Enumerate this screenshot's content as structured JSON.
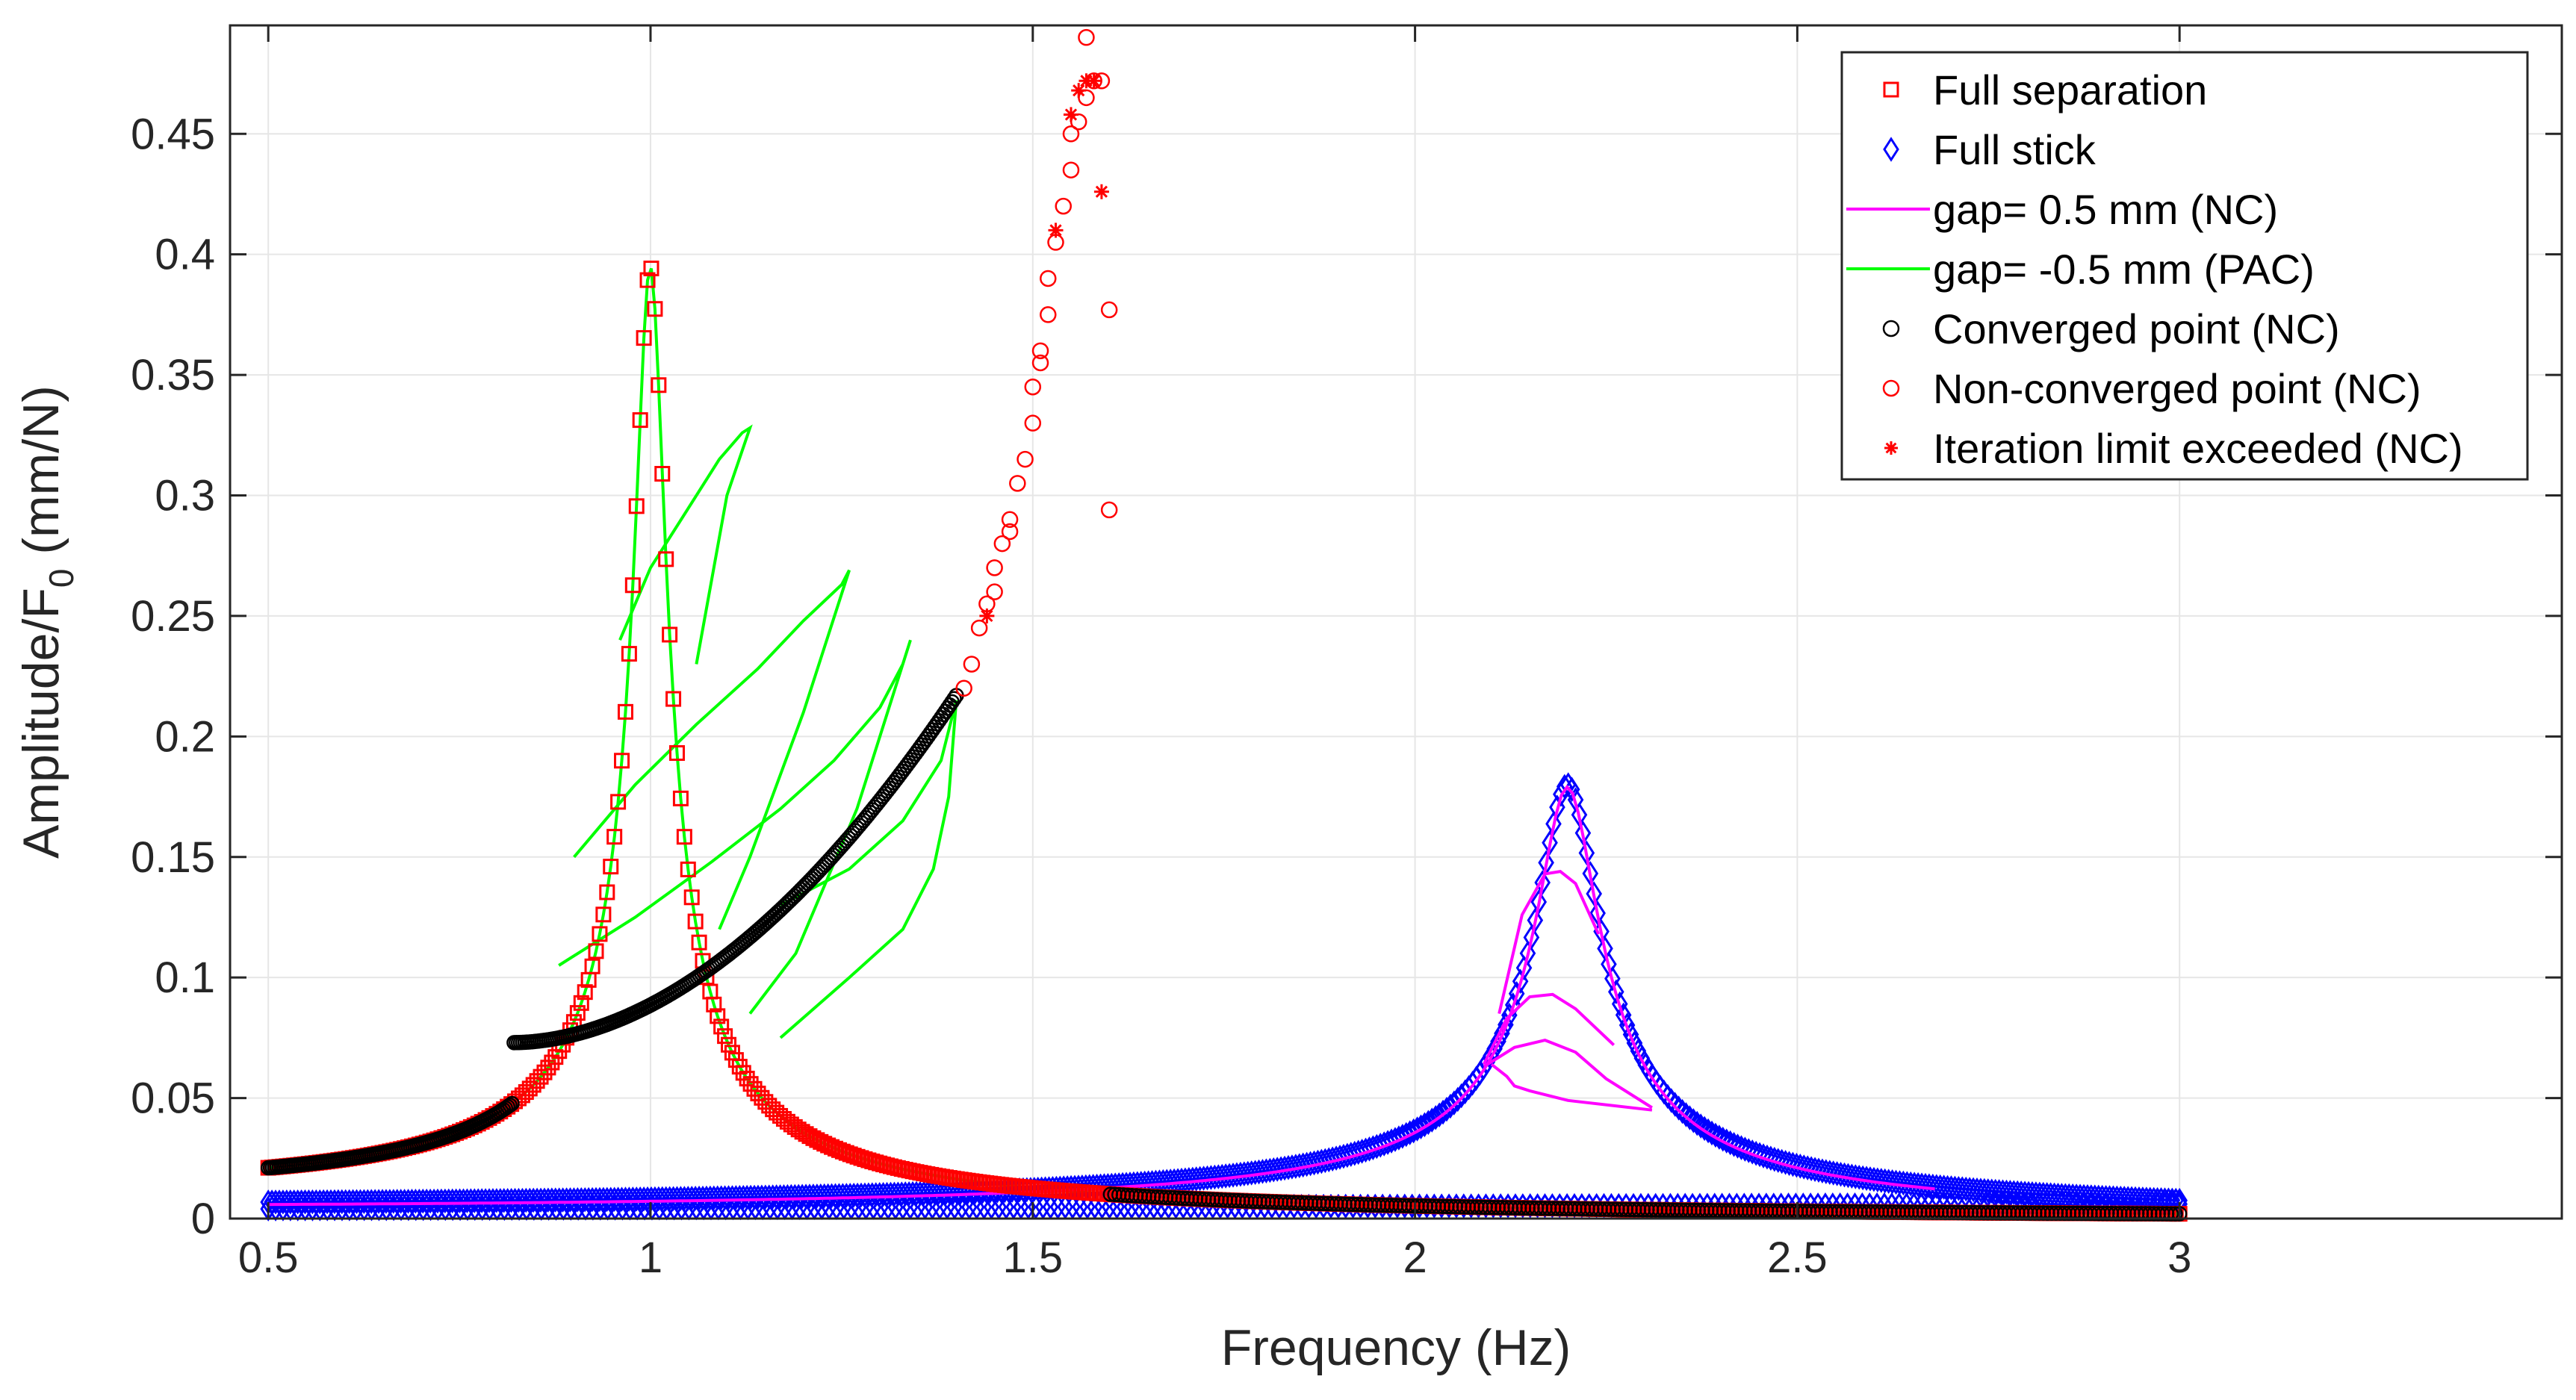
{
  "chart_data": {
    "type": "line",
    "title": "",
    "xlabel": "Frequency (Hz)",
    "ylabel": {
      "main": "Amplitude/F",
      "sub": "0",
      "unit": " (mm/N)"
    },
    "xlim": [
      0.45,
      3.5
    ],
    "ylim": [
      0,
      0.495
    ],
    "xticks": [
      0.5,
      1,
      1.5,
      2,
      2.5,
      3
    ],
    "xtick_labels": [
      "0.5",
      "1",
      "1.5",
      "2",
      "2.5",
      "3"
    ],
    "yticks": [
      0,
      0.05,
      0.1,
      0.15,
      0.2,
      0.25,
      0.3,
      0.35,
      0.4,
      0.45
    ],
    "ytick_labels": [
      "0",
      "0.05",
      "0.1",
      "0.15",
      "0.2",
      "0.25",
      "0.3",
      "0.35",
      "0.4",
      "0.45"
    ],
    "grid": true,
    "legend_position": "top-right",
    "colors": {
      "full_separation": "#ff0000",
      "full_stick": "#0000ff",
      "gap_pos": "#ff00ff",
      "gap_neg": "#00ff00",
      "converged": "#000000",
      "nonconverged": "#ff0000",
      "iteration": "#ff0000",
      "axis": "#262626",
      "grid": "#e6e6e6"
    },
    "series": [
      {
        "key": "full_separation",
        "name": "Full separation",
        "marker": "square",
        "model": {
          "peak_freq": 1.0,
          "peak_amp": 0.395,
          "damping": 0.02,
          "f_start": 0.5,
          "f_end": 3.0
        }
      },
      {
        "key": "full_stick",
        "name": "Full stick",
        "marker": "diamond",
        "model": {
          "peak_freq": 2.2,
          "peak_amp": 0.18,
          "damping": 0.018,
          "f_start": 0.5,
          "f_end": 3.0
        }
      },
      {
        "key": "gap_pos",
        "name": "gap= 0.5 mm (NC)",
        "marker": "line",
        "peak_curves": [
          {
            "x": [
              2.09,
              2.13,
              2.17,
              2.21,
              2.25,
              2.31
            ],
            "y": [
              0.063,
              0.071,
              0.074,
              0.069,
              0.058,
              0.046
            ]
          },
          {
            "x": [
              2.09,
              2.12,
              2.15,
              2.18,
              2.21,
              2.26
            ],
            "y": [
              0.064,
              0.083,
              0.092,
              0.093,
              0.087,
              0.072
            ]
          },
          {
            "x": [
              2.11,
              2.14,
              2.17,
              2.19,
              2.21,
              2.24
            ],
            "y": [
              0.085,
              0.126,
              0.143,
              0.144,
              0.139,
              0.118
            ]
          },
          {
            "x": [
              2.1,
              2.12,
              2.13,
              2.15,
              2.2,
              2.31
            ],
            "y": [
              0.064,
              0.059,
              0.055,
              0.053,
              0.049,
              0.045
            ]
          }
        ]
      },
      {
        "key": "gap_neg",
        "name": "gap= -0.5 mm (PAC)",
        "marker": "line",
        "loops": [
          {
            "x": [
              0.96,
              1.0,
              1.05,
              1.09,
              1.12,
              1.13,
              1.1,
              1.06
            ],
            "y": [
              0.24,
              0.27,
              0.295,
              0.315,
              0.326,
              0.328,
              0.3,
              0.23
            ]
          },
          {
            "x": [
              0.9,
              0.98,
              1.06,
              1.14,
              1.2,
              1.25,
              1.26,
              1.2,
              1.13,
              1.09
            ],
            "y": [
              0.15,
              0.18,
              0.205,
              0.228,
              0.248,
              0.263,
              0.269,
              0.21,
              0.15,
              0.12
            ]
          },
          {
            "x": [
              0.88,
              0.98,
              1.08,
              1.17,
              1.24,
              1.3,
              1.33,
              1.34,
              1.27,
              1.19,
              1.13
            ],
            "y": [
              0.105,
              0.125,
              0.148,
              0.17,
              0.19,
              0.212,
              0.23,
              0.24,
              0.17,
              0.11,
              0.085
            ]
          },
          {
            "x": [
              1.17,
              1.26,
              1.33,
              1.37,
              1.39,
              1.4,
              1.38,
              1.33,
              1.26,
              1.17
            ],
            "y": [
              0.075,
              0.1,
              0.12,
              0.145,
              0.175,
              0.215,
              0.19,
              0.165,
              0.145,
              0.13
            ]
          }
        ]
      },
      {
        "key": "converged",
        "name": "Converged point (NC)",
        "marker": "circle",
        "model": {
          "f_start": 0.5,
          "f_end": 3.0,
          "knee_freq": 0.82,
          "knee_amp": 0.073,
          "jump_freq": 1.4,
          "jump_amp": 0.217
        }
      },
      {
        "key": "nonconverged",
        "name": "Non-converged point (NC)",
        "marker": "circle",
        "x": [
          1.41,
          1.42,
          1.43,
          1.44,
          1.45,
          1.45,
          1.46,
          1.47,
          1.47,
          1.48,
          1.49,
          1.5,
          1.5,
          1.51,
          1.51,
          1.52,
          1.52,
          1.53,
          1.54,
          1.55,
          1.55,
          1.56,
          1.57,
          1.57,
          1.58,
          1.59,
          1.6,
          1.6
        ],
        "y": [
          0.22,
          0.23,
          0.245,
          0.255,
          0.26,
          0.27,
          0.28,
          0.285,
          0.29,
          0.305,
          0.315,
          0.33,
          0.345,
          0.355,
          0.36,
          0.375,
          0.39,
          0.405,
          0.42,
          0.435,
          0.45,
          0.455,
          0.465,
          0.49,
          0.472,
          0.472,
          0.377,
          0.294
        ]
      },
      {
        "key": "iteration",
        "name": "Iteration limit exceeded (NC)",
        "marker": "asterisk",
        "x": [
          1.44,
          1.53,
          1.55,
          1.56,
          1.57,
          1.58,
          1.59
        ],
        "y": [
          0.25,
          0.41,
          0.458,
          0.468,
          0.472,
          0.472,
          0.426
        ]
      }
    ]
  }
}
